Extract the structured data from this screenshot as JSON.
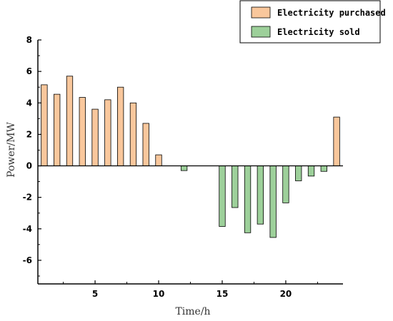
{
  "chart_data": {
    "type": "bar",
    "xlabel": "Time/h",
    "ylabel": "Power/MW",
    "xlim": [
      0.5,
      24.5
    ],
    "ylim": [
      -7.5,
      8
    ],
    "xticks": [
      5,
      10,
      15,
      20
    ],
    "yticks": [
      8,
      6,
      4,
      2,
      0,
      -2,
      -4,
      -6
    ],
    "grid": false,
    "legend_position": "top-right",
    "series": [
      {
        "name": "Electricity purchased",
        "color": "#f9c79c",
        "x": [
          1,
          2,
          3,
          4,
          5,
          6,
          7,
          8,
          9,
          10,
          24
        ],
        "values": [
          5.15,
          4.55,
          5.7,
          4.35,
          3.6,
          4.2,
          5.0,
          4.0,
          2.7,
          0.7,
          3.1
        ]
      },
      {
        "name": "Electricity sold",
        "color": "#9dd09a",
        "x": [
          12,
          15,
          16,
          17,
          18,
          19,
          20,
          21,
          22,
          23
        ],
        "values": [
          -0.3,
          -3.85,
          -2.65,
          -4.25,
          -3.7,
          -4.55,
          -2.35,
          -0.95,
          -0.65,
          -0.35
        ]
      }
    ]
  }
}
